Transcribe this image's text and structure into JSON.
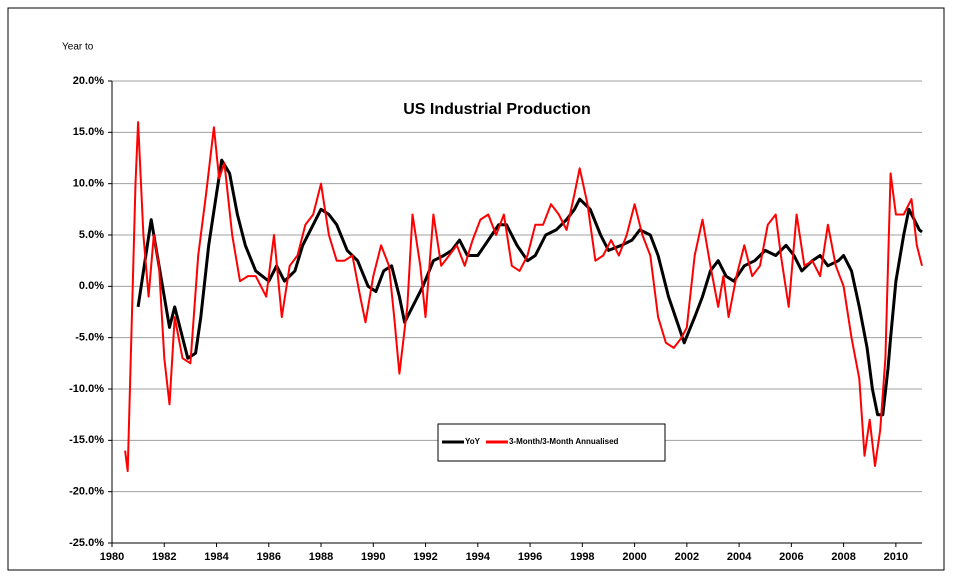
{
  "chart_data": {
    "type": "line",
    "title": "US Industrial Production",
    "y_label": "Year to",
    "xlim": [
      1980,
      2011
    ],
    "xticks": [
      1980,
      1982,
      1984,
      1986,
      1988,
      1990,
      1992,
      1994,
      1996,
      1998,
      2000,
      2002,
      2004,
      2006,
      2008,
      2010
    ],
    "ylim": [
      -25,
      20
    ],
    "yticks": [
      {
        "value": -25,
        "label": "-25.0%"
      },
      {
        "value": -20,
        "label": "-20.0%"
      },
      {
        "value": -15,
        "label": "-15.0%"
      },
      {
        "value": -10,
        "label": "-10.0%"
      },
      {
        "value": -5,
        "label": "-5.0%"
      },
      {
        "value": 0,
        "label": "0.0%"
      },
      {
        "value": 5,
        "label": "5.0%"
      },
      {
        "value": 10,
        "label": "10.0%"
      },
      {
        "value": 15,
        "label": "15.0%"
      },
      {
        "value": 20,
        "label": "20.0%"
      }
    ],
    "grid": true,
    "legend": "center",
    "series": [
      {
        "name": "YoY",
        "color": "#000000",
        "x": [
          1981.0,
          1981.5,
          1982.2,
          1982.4,
          1982.9,
          1983.2,
          1983.4,
          1983.7,
          1984.0,
          1984.2,
          1984.5,
          1984.8,
          1985.1,
          1985.5,
          1986.0,
          1986.3,
          1986.6,
          1987.0,
          1987.3,
          1987.7,
          1988.0,
          1988.3,
          1988.6,
          1989.0,
          1989.4,
          1989.8,
          1990.1,
          1990.4,
          1990.7,
          1991.0,
          1991.2,
          1991.6,
          1991.9,
          1992.3,
          1992.7,
          1993.0,
          1993.3,
          1993.6,
          1994.0,
          1994.4,
          1994.8,
          1995.1,
          1995.5,
          1995.9,
          1996.2,
          1996.6,
          1997.0,
          1997.4,
          1997.7,
          1997.9,
          1998.3,
          1998.7,
          1999.0,
          1999.5,
          1999.9,
          2000.2,
          2000.6,
          2000.9,
          2001.3,
          2001.7,
          2001.9,
          2002.3,
          2002.6,
          2002.9,
          2003.2,
          2003.5,
          2003.8,
          2004.2,
          2004.6,
          2005.0,
          2005.4,
          2005.8,
          2006.1,
          2006.4,
          2006.8,
          2007.1,
          2007.4,
          2007.8,
          2008.0,
          2008.3,
          2008.6,
          2008.9,
          2009.1,
          2009.3,
          2009.5,
          2009.7,
          2009.8,
          2010.0,
          2010.3,
          2010.5,
          2010.7,
          2010.9,
          2011.0
        ],
        "values": [
          -2,
          6.5,
          -4,
          -2,
          -7,
          -6.5,
          -3,
          4,
          9,
          12.3,
          11,
          7,
          4,
          1.5,
          0.5,
          2,
          0.5,
          1.5,
          4,
          6,
          7.5,
          7,
          6,
          3.5,
          2.5,
          0,
          -0.5,
          1.5,
          2,
          -1,
          -3.5,
          -1.5,
          0,
          2.5,
          3,
          3.5,
          4.5,
          3,
          3,
          4.5,
          6,
          6,
          4,
          2.5,
          3,
          5,
          5.5,
          6.5,
          7.5,
          8.5,
          7.5,
          5,
          3.5,
          4,
          4.5,
          5.5,
          5,
          3,
          -1,
          -4,
          -5.5,
          -3,
          -1,
          1.5,
          2.5,
          1,
          0.5,
          2,
          2.5,
          3.5,
          3,
          4,
          3,
          1.5,
          2.5,
          3,
          2,
          2.5,
          3,
          1.5,
          -2,
          -6,
          -10,
          -12.5,
          -12.5,
          -8,
          -5,
          0.5,
          5,
          7.5,
          6.5,
          5.5,
          5.3
        ]
      },
      {
        "name": "3-Month/3-Month Annualised",
        "color": "#ff0000",
        "x": [
          1980.5,
          1980.6,
          1980.9,
          1981.0,
          1981.2,
          1981.4,
          1981.6,
          1981.8,
          1982.0,
          1982.2,
          1982.4,
          1982.7,
          1983.0,
          1983.3,
          1983.6,
          1983.9,
          1984.1,
          1984.3,
          1984.6,
          1984.9,
          1985.2,
          1985.5,
          1985.9,
          1986.2,
          1986.5,
          1986.8,
          1987.1,
          1987.4,
          1987.7,
          1988.0,
          1988.3,
          1988.6,
          1988.9,
          1989.2,
          1989.5,
          1989.7,
          1990.0,
          1990.3,
          1990.6,
          1990.8,
          1991.0,
          1991.3,
          1991.5,
          1991.8,
          1992.0,
          1992.3,
          1992.6,
          1992.9,
          1993.2,
          1993.5,
          1993.8,
          1994.1,
          1994.4,
          1994.7,
          1995.0,
          1995.3,
          1995.6,
          1995.9,
          1996.2,
          1996.5,
          1996.8,
          1997.1,
          1997.4,
          1997.7,
          1997.9,
          1998.2,
          1998.5,
          1998.8,
          1999.1,
          1999.4,
          1999.7,
          2000.0,
          2000.3,
          2000.6,
          2000.9,
          2001.2,
          2001.5,
          2001.8,
          2002.0,
          2002.3,
          2002.6,
          2002.9,
          2003.2,
          2003.4,
          2003.6,
          2003.9,
          2004.2,
          2004.5,
          2004.8,
          2005.1,
          2005.4,
          2005.6,
          2005.9,
          2006.2,
          2006.5,
          2006.8,
          2007.1,
          2007.4,
          2007.7,
          2008.0,
          2008.3,
          2008.6,
          2008.8,
          2009.0,
          2009.2,
          2009.4,
          2009.6,
          2009.8,
          2010.0,
          2010.3,
          2010.6,
          2010.8,
          2011.0
        ],
        "values": [
          -16,
          -18,
          10,
          16,
          5,
          -1,
          5,
          2,
          -7,
          -11.5,
          -3,
          -7,
          -7.5,
          3,
          9,
          15.5,
          10.5,
          12,
          5,
          0.5,
          1,
          1,
          -1,
          5,
          -3,
          2,
          3,
          6,
          7,
          10,
          5,
          2.5,
          2.5,
          3,
          -1,
          -3.5,
          1,
          4,
          2,
          -3,
          -8.5,
          -2,
          7,
          2,
          -3,
          7,
          2,
          3,
          4,
          2,
          4.5,
          6.5,
          7,
          5,
          7,
          2,
          1.5,
          3,
          6,
          6,
          8,
          7,
          5.5,
          9,
          11.5,
          8,
          2.5,
          3,
          4.5,
          3,
          5,
          8,
          5,
          3,
          -3,
          -5.5,
          -6,
          -5,
          -4,
          3,
          6.5,
          2,
          -2,
          1,
          -3,
          1,
          4,
          1,
          2,
          6,
          7,
          3,
          -2,
          7,
          2,
          2.5,
          1,
          6,
          2,
          0,
          -5,
          -9,
          -16.5,
          -13,
          -17.5,
          -14,
          -7,
          11,
          7,
          7,
          8.5,
          4,
          2
        ]
      }
    ]
  }
}
